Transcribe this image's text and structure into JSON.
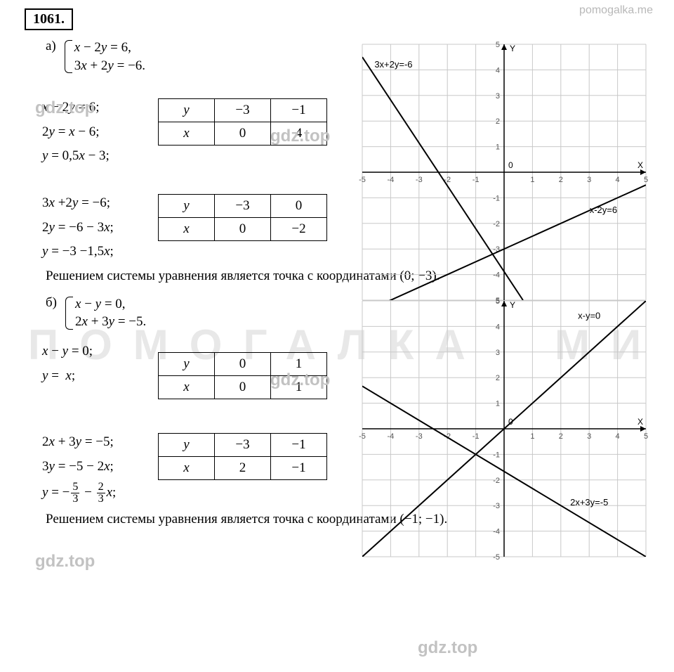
{
  "watermark_site": "pomogalka.me",
  "problem_number": "1061.",
  "gdz_text": "gdz.top",
  "wm1": "ПОМОГАЛКА",
  "wm2": "МИ",
  "partA": {
    "label": "а)",
    "system": [
      "x − 2y = 6,",
      "3x + 2y = −6."
    ],
    "eqs_block1": [
      "x − 2y = 6;",
      "2y = x − 6;",
      "y = 0,5x − 3;"
    ],
    "eqs_block2": [
      "3x +2y = −6;",
      "2y = −6 − 3x;",
      "y = −3 −1,5x;"
    ],
    "table1": {
      "headers": [
        "y",
        "x"
      ],
      "row1": [
        "−3",
        "−1"
      ],
      "row2": [
        "0",
        "4"
      ]
    },
    "table2": {
      "headers": [
        "y",
        "x"
      ],
      "row1": [
        "−3",
        "0"
      ],
      "row2": [
        "0",
        "−2"
      ]
    },
    "chart": {
      "xlim": [
        -5,
        5
      ],
      "ylim": [
        -5,
        5
      ],
      "xticks": [
        -5,
        -4,
        -3,
        -2,
        -1,
        0,
        1,
        2,
        3,
        4,
        5
      ],
      "yticks": [
        -5,
        -4,
        -3,
        -2,
        -1,
        1,
        2,
        3,
        4,
        5
      ],
      "xlabel": "X",
      "ylabel": "Y",
      "grid_color": "#c8c8c8",
      "bg": "#ffffff",
      "lines": [
        {
          "label": "3x+2y=-6",
          "p1": [
            -5,
            4.5
          ],
          "p2": [
            0.666,
            -5
          ],
          "lx": -3.9,
          "ly": 4.1
        },
        {
          "label": "x-2y=6",
          "p1": [
            -5,
            -5.5
          ],
          "p2": [
            5,
            -0.5
          ],
          "lx": 3.5,
          "ly": -1.6
        }
      ]
    },
    "answer": "Решением системы уравнения является точка с координатами (0; −3)."
  },
  "partB": {
    "label": "б)",
    "system": [
      "x − y = 0,",
      "2x + 3y = −5."
    ],
    "eqs_block1": [
      "x − y = 0;",
      "y =  x;"
    ],
    "eqs_block2_prefix": [
      "2x + 3y = −5;",
      "3y = −5 − 2x;"
    ],
    "frac_line_prefix": "y = −",
    "frac1_num": "5",
    "frac1_den": "3",
    "frac_mid": " − ",
    "frac2_num": "2",
    "frac2_den": "3",
    "frac_suffix": "x;",
    "table1": {
      "headers": [
        "y",
        "x"
      ],
      "row1": [
        "0",
        "1"
      ],
      "row2": [
        "0",
        "1"
      ]
    },
    "table2": {
      "headers": [
        "y",
        "x"
      ],
      "row1": [
        "−3",
        "−1"
      ],
      "row2": [
        "2",
        "−1"
      ]
    },
    "chart": {
      "xlim": [
        -5,
        5
      ],
      "ylim": [
        -5,
        5
      ],
      "xticks": [
        -5,
        -4,
        -3,
        -2,
        -1,
        0,
        1,
        2,
        3,
        4,
        5
      ],
      "yticks": [
        -5,
        -4,
        -3,
        -2,
        -1,
        1,
        2,
        3,
        4,
        5
      ],
      "xlabel": "X",
      "ylabel": "Y",
      "grid_color": "#c8c8c8",
      "bg": "#ffffff",
      "lines": [
        {
          "label": "x-y=0",
          "p1": [
            -5,
            -5
          ],
          "p2": [
            5,
            5
          ],
          "lx": 3.0,
          "ly": 4.3
        },
        {
          "label": "2x+3y=-5",
          "p1": [
            -5,
            1.666
          ],
          "p2": [
            5,
            -5
          ],
          "lx": 3.0,
          "ly": -3
        }
      ]
    },
    "answer": "Решением системы уравнения является точка с координатами (−1; −1)."
  }
}
